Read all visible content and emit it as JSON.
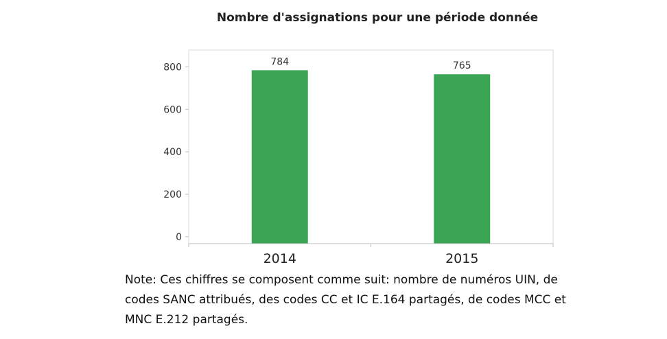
{
  "chart_data": {
    "type": "bar",
    "title": "Nombre d'assignations pour une période donnée",
    "categories": [
      "2014",
      "2015"
    ],
    "values": [
      784,
      765
    ],
    "xlabel": "",
    "ylabel": "",
    "ylim": [
      0,
      900
    ],
    "yticks": [
      0,
      200,
      400,
      600,
      800
    ],
    "bar_color": "#3aa654",
    "grid": false,
    "legend": "none"
  },
  "note": "Note: Ces chiffres se composent comme suit: nombre de numéros UIN, de codes SANC attribués, des codes CC et IC E.164 partagés, de codes MCC et MNC E.212 partagés."
}
